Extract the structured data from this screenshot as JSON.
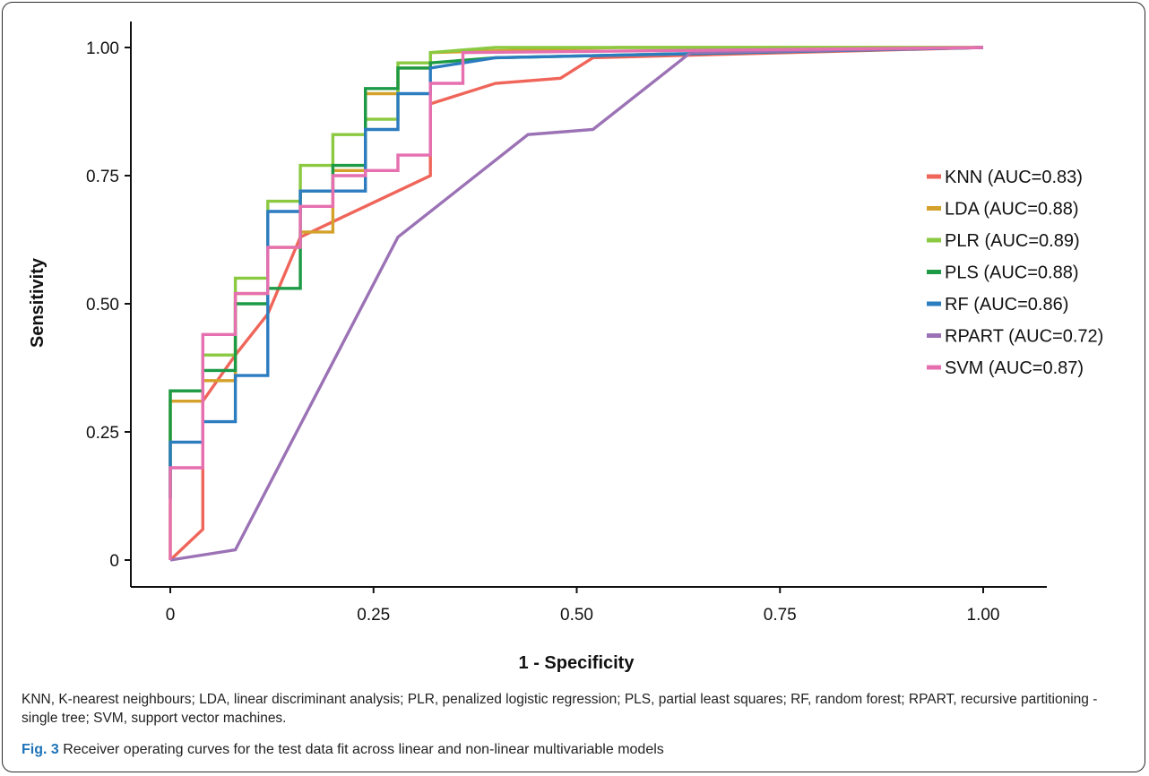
{
  "chart_data": {
    "type": "line",
    "title": "",
    "xlabel": "1 - Specificity",
    "ylabel": "Sensitivity",
    "xlim": [
      0,
      1
    ],
    "ylim": [
      0,
      1
    ],
    "xticks": [
      0,
      0.25,
      0.5,
      0.75,
      1.0
    ],
    "xtick_labels": [
      "0",
      "0.25",
      "0.50",
      "0.75",
      "1.00"
    ],
    "yticks": [
      0,
      0.25,
      0.5,
      0.75,
      1.0
    ],
    "ytick_labels": [
      "0",
      "0.25",
      "0.50",
      "0.75",
      "1.00"
    ],
    "grid": false,
    "legend": "right",
    "series": [
      {
        "name": "KNN (AUC=0.83)",
        "color": "#f0655a",
        "x": [
          0,
          0.04,
          0.04,
          0.08,
          0.12,
          0.16,
          0.24,
          0.32,
          0.32,
          0.4,
          0.48,
          0.52,
          1.0
        ],
        "y": [
          0,
          0.06,
          0.31,
          0.4,
          0.48,
          0.63,
          0.69,
          0.75,
          0.89,
          0.93,
          0.94,
          0.98,
          1.0
        ]
      },
      {
        "name": "LDA (AUC=0.88)",
        "color": "#d4a12a",
        "x": [
          0,
          0,
          0.04,
          0.04,
          0.08,
          0.08,
          0.12,
          0.12,
          0.16,
          0.16,
          0.2,
          0.2,
          0.24,
          0.24,
          0.28,
          0.28,
          0.32,
          0.32,
          0.55,
          1.0
        ],
        "y": [
          0,
          0.31,
          0.31,
          0.35,
          0.35,
          0.52,
          0.52,
          0.61,
          0.61,
          0.64,
          0.64,
          0.76,
          0.76,
          0.91,
          0.91,
          0.96,
          0.96,
          0.99,
          1.0,
          1.0
        ],
        "step": false
      },
      {
        "name": "PLR (AUC=0.89)",
        "color": "#8ac940",
        "x": [
          0,
          0,
          0.04,
          0.04,
          0.08,
          0.08,
          0.12,
          0.12,
          0.16,
          0.16,
          0.2,
          0.2,
          0.24,
          0.24,
          0.28,
          0.28,
          0.32,
          0.32,
          0.4,
          1.0
        ],
        "y": [
          0.12,
          0.33,
          0.33,
          0.4,
          0.4,
          0.55,
          0.55,
          0.7,
          0.7,
          0.77,
          0.77,
          0.83,
          0.83,
          0.86,
          0.86,
          0.97,
          0.97,
          0.99,
          1.0,
          1.0
        ]
      },
      {
        "name": "PLS (AUC=0.88)",
        "color": "#1d9a45",
        "x": [
          0,
          0,
          0.04,
          0.04,
          0.08,
          0.08,
          0.12,
          0.12,
          0.16,
          0.16,
          0.2,
          0.2,
          0.24,
          0.24,
          0.28,
          0.28,
          0.32,
          0.32,
          0.4,
          1.0
        ],
        "y": [
          0.12,
          0.33,
          0.33,
          0.37,
          0.37,
          0.5,
          0.5,
          0.53,
          0.53,
          0.72,
          0.72,
          0.77,
          0.77,
          0.92,
          0.92,
          0.96,
          0.96,
          0.97,
          0.98,
          1.0
        ]
      },
      {
        "name": "RF (AUC=0.86)",
        "color": "#2c7cc0",
        "x": [
          0,
          0,
          0.04,
          0.04,
          0.08,
          0.08,
          0.12,
          0.12,
          0.16,
          0.16,
          0.24,
          0.24,
          0.28,
          0.28,
          0.32,
          0.32,
          0.4,
          1.0
        ],
        "y": [
          0.12,
          0.23,
          0.23,
          0.27,
          0.27,
          0.36,
          0.36,
          0.68,
          0.68,
          0.72,
          0.72,
          0.84,
          0.84,
          0.91,
          0.91,
          0.96,
          0.98,
          1.0
        ]
      },
      {
        "name": "RPART (AUC=0.72)",
        "color": "#9b72b5",
        "x": [
          0,
          0.08,
          0.28,
          0.44,
          0.52,
          0.64,
          1.0
        ],
        "y": [
          0,
          0.02,
          0.63,
          0.83,
          0.84,
          0.99,
          1.0
        ]
      },
      {
        "name": "SVM (AUC=0.87)",
        "color": "#e66fb0",
        "x": [
          0,
          0,
          0.04,
          0.04,
          0.08,
          0.08,
          0.12,
          0.12,
          0.16,
          0.16,
          0.2,
          0.2,
          0.24,
          0.24,
          0.28,
          0.28,
          0.32,
          0.32,
          0.36,
          0.36,
          1.0
        ],
        "y": [
          0,
          0.18,
          0.18,
          0.44,
          0.44,
          0.52,
          0.52,
          0.61,
          0.61,
          0.69,
          0.69,
          0.75,
          0.75,
          0.76,
          0.76,
          0.79,
          0.79,
          0.93,
          0.93,
          0.99,
          1.0
        ]
      }
    ]
  },
  "footnote": "KNN, K-nearest neighbours; LDA, linear discriminant analysis; PLR, penalized logistic regression; PLS, partial least squares; RF, random forest; RPART, recursive partitioning - single tree; SVM, support vector machines.",
  "caption": {
    "label": "Fig. 3",
    "text": " Receiver operating curves for the test data fit across linear and non-linear multivariable models"
  }
}
